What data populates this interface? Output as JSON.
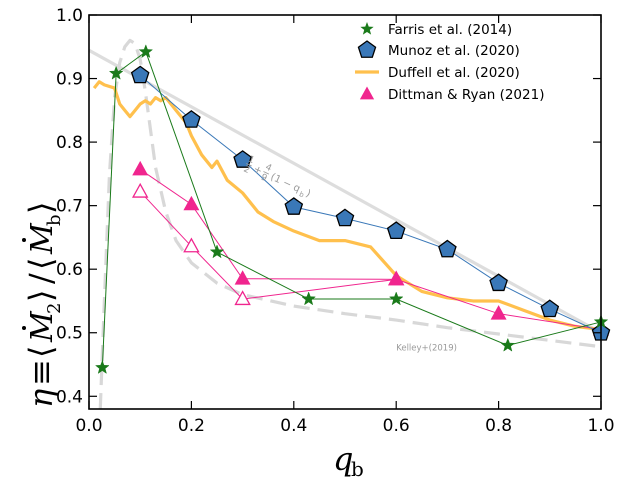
{
  "chart_data": {
    "type": "line",
    "xlabel": "q",
    "xlabel_sub": "b",
    "ylabel_parts": {
      "eta": "η",
      "equiv": "≡",
      "lang": "⟨",
      "M": "M",
      "sub2": "2",
      "rang": "⟩",
      "slash": "/",
      "subb": "b"
    },
    "xlim": [
      0.0,
      1.0
    ],
    "ylim": [
      0.38,
      1.0
    ],
    "x_ticks": [
      "0.0",
      "0.2",
      "0.4",
      "0.6",
      "0.8",
      "1.0"
    ],
    "y_ticks": [
      "0.4",
      "0.5",
      "0.6",
      "0.7",
      "0.8",
      "0.9",
      "1.0"
    ],
    "legend_position": "top-right",
    "series": [
      {
        "name": "Farris et al. (2014)",
        "color": "#1a7a1a",
        "marker": "star",
        "x": [
          0.026,
          0.053,
          0.111,
          0.25,
          0.429,
          0.6,
          0.818,
          1.0
        ],
        "y": [
          0.445,
          0.908,
          0.942,
          0.627,
          0.553,
          0.553,
          0.48,
          0.517
        ]
      },
      {
        "name": "Munoz et al. (2020)",
        "color": "#3a78b8",
        "line_color": "#3a78b8",
        "marker": "pentagon",
        "x": [
          0.1,
          0.2,
          0.3,
          0.4,
          0.5,
          0.6,
          0.7,
          0.8,
          0.9,
          1.0
        ],
        "y": [
          0.905,
          0.835,
          0.772,
          0.698,
          0.68,
          0.66,
          0.631,
          0.578,
          0.537,
          0.5
        ]
      },
      {
        "name": "Duffell et al. (2020)",
        "color": "#ffc04d",
        "marker": "none",
        "x": [
          0.01,
          0.02,
          0.03,
          0.05,
          0.06,
          0.07,
          0.08,
          0.09,
          0.1,
          0.11,
          0.12,
          0.13,
          0.14,
          0.15,
          0.17,
          0.19,
          0.2,
          0.22,
          0.24,
          0.25,
          0.27,
          0.3,
          0.33,
          0.36,
          0.4,
          0.45,
          0.5,
          0.55,
          0.6,
          0.65,
          0.7,
          0.75,
          0.8,
          0.85,
          0.9,
          0.95,
          1.0
        ],
        "y": [
          0.885,
          0.895,
          0.89,
          0.885,
          0.86,
          0.85,
          0.84,
          0.85,
          0.86,
          0.865,
          0.86,
          0.87,
          0.865,
          0.87,
          0.85,
          0.83,
          0.81,
          0.78,
          0.76,
          0.77,
          0.74,
          0.72,
          0.69,
          0.675,
          0.66,
          0.645,
          0.645,
          0.635,
          0.59,
          0.565,
          0.555,
          0.55,
          0.55,
          0.535,
          0.52,
          0.51,
          0.505
        ]
      },
      {
        "name": "Dittman & Ryan (2021)",
        "color": "#f0258e",
        "marker": "triangle",
        "x": [
          0.1,
          0.2,
          0.3,
          0.6,
          0.8,
          1.0
        ],
        "y": [
          0.757,
          0.702,
          0.585,
          0.584,
          0.53,
          0.505
        ]
      },
      {
        "name": "Dittman & Ryan (2021) open",
        "color": "#f0258e",
        "marker": "triangle-open",
        "in_legend": false,
        "x": [
          0.1,
          0.2,
          0.3,
          0.6
        ],
        "y": [
          0.722,
          0.636,
          0.553,
          0.584
        ]
      },
      {
        "name": "Kelley+(2019)",
        "color": "#d8d8d8",
        "dashed": true,
        "in_legend": false,
        "x": [
          0.022,
          0.03,
          0.04,
          0.05,
          0.06,
          0.07,
          0.08,
          0.09,
          0.1,
          0.11,
          0.12,
          0.13,
          0.15,
          0.17,
          0.2,
          0.25,
          0.3,
          0.4,
          0.5,
          0.6,
          0.7,
          0.8,
          0.9,
          1.0
        ],
        "y": [
          0.38,
          0.55,
          0.75,
          0.87,
          0.925,
          0.95,
          0.96,
          0.955,
          0.93,
          0.88,
          0.82,
          0.76,
          0.69,
          0.645,
          0.61,
          0.578,
          0.56,
          0.542,
          0.53,
          0.52,
          0.508,
          0.498,
          0.488,
          0.478
        ]
      },
      {
        "name": "1/2 + 4/9 (1 - q_b)",
        "color": "#dddddd",
        "dashed": false,
        "in_legend": false,
        "x": [
          0.0,
          1.0
        ],
        "y": [
          0.9444,
          0.5
        ]
      }
    ],
    "annotations": [
      {
        "text_parts": {
          "n1": "1",
          "d1": "2",
          "plus": "+",
          "n2": "4",
          "d2": "9",
          "rest": "(1 − q",
          "sub": "b",
          "close": ")"
        },
        "x": 0.31,
        "y": 0.76
      },
      {
        "text": "Kelley+(2019)",
        "x": 0.6,
        "y": 0.472
      }
    ]
  }
}
